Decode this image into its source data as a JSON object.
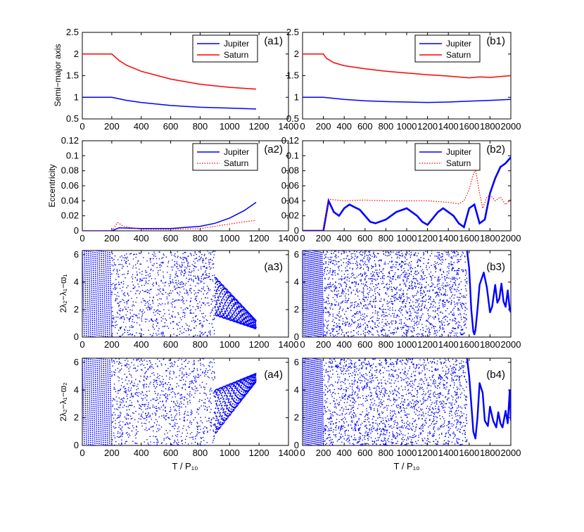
{
  "chart_data": [
    {
      "id": "a1",
      "panel_label": "(a1)",
      "type": "line",
      "ylabel": "Semi−major axis",
      "xlabel": "",
      "xlim": [
        0,
        1400
      ],
      "ylim": [
        0.5,
        2.5
      ],
      "xticks": [
        0,
        200,
        400,
        600,
        800,
        1000,
        1200,
        1400
      ],
      "yticks": [
        0.5,
        1,
        1.5,
        2,
        2.5
      ],
      "legend": {
        "position": "top-right",
        "style": "solid"
      },
      "series": [
        {
          "name": "Jupiter",
          "color": "#0000ff",
          "points": [
            [
              0,
              1.0
            ],
            [
              200,
              1.0
            ],
            [
              300,
              0.93
            ],
            [
              400,
              0.88
            ],
            [
              600,
              0.81
            ],
            [
              800,
              0.77
            ],
            [
              1000,
              0.75
            ],
            [
              1180,
              0.73
            ]
          ]
        },
        {
          "name": "Saturn",
          "color": "#ff0000",
          "points": [
            [
              0,
              2.0
            ],
            [
              200,
              2.0
            ],
            [
              250,
              1.85
            ],
            [
              300,
              1.74
            ],
            [
              400,
              1.6
            ],
            [
              600,
              1.42
            ],
            [
              800,
              1.3
            ],
            [
              1000,
              1.23
            ],
            [
              1180,
              1.19
            ]
          ]
        }
      ]
    },
    {
      "id": "b1",
      "panel_label": "(b1)",
      "type": "line",
      "ylabel": "",
      "xlabel": "",
      "xlim": [
        0,
        2000
      ],
      "ylim": [
        0.5,
        2.5
      ],
      "xticks": [
        0,
        200,
        400,
        600,
        800,
        1000,
        1200,
        1400,
        1600,
        1800,
        2000
      ],
      "yticks": [
        0.5,
        1,
        1.5,
        2,
        2.5
      ],
      "legend": {
        "position": "top-right",
        "style": "solid"
      },
      "series": [
        {
          "name": "Jupiter",
          "color": "#0000ff",
          "points": [
            [
              0,
              1.0
            ],
            [
              200,
              1.0
            ],
            [
              400,
              0.95
            ],
            [
              600,
              0.92
            ],
            [
              800,
              0.9
            ],
            [
              1000,
              0.89
            ],
            [
              1200,
              0.88
            ],
            [
              1400,
              0.89
            ],
            [
              1600,
              0.91
            ],
            [
              1800,
              0.93
            ],
            [
              2000,
              0.95
            ]
          ]
        },
        {
          "name": "Saturn",
          "color": "#ff0000",
          "points": [
            [
              0,
              2.0
            ],
            [
              200,
              2.0
            ],
            [
              230,
              1.9
            ],
            [
              300,
              1.8
            ],
            [
              400,
              1.73
            ],
            [
              600,
              1.66
            ],
            [
              800,
              1.6
            ],
            [
              1000,
              1.56
            ],
            [
              1200,
              1.52
            ],
            [
              1400,
              1.49
            ],
            [
              1600,
              1.45
            ],
            [
              1700,
              1.47
            ],
            [
              1800,
              1.46
            ],
            [
              2000,
              1.5
            ]
          ]
        }
      ]
    },
    {
      "id": "a2",
      "panel_label": "(a2)",
      "type": "line",
      "ylabel": "Eccentricity",
      "xlabel": "",
      "xlim": [
        0,
        1400
      ],
      "ylim": [
        0,
        0.12
      ],
      "xticks": [
        0,
        200,
        400,
        600,
        800,
        1000,
        1200,
        1400
      ],
      "yticks": [
        0,
        0.02,
        0.04,
        0.06,
        0.08,
        0.1,
        0.12
      ],
      "legend": {
        "position": "top-right",
        "style": "jupiter-solid-saturn-dotted"
      },
      "series": [
        {
          "name": "Jupiter",
          "color": "#0000ff",
          "points": [
            [
              0,
              0.0
            ],
            [
              200,
              0.0
            ],
            [
              250,
              0.004
            ],
            [
              400,
              0.003
            ],
            [
              600,
              0.003
            ],
            [
              800,
              0.006
            ],
            [
              900,
              0.01
            ],
            [
              1000,
              0.017
            ],
            [
              1100,
              0.027
            ],
            [
              1180,
              0.038
            ]
          ]
        },
        {
          "name": "Saturn",
          "color": "#ff0000",
          "points": [
            [
              0,
              0.0
            ],
            [
              200,
              0.0
            ],
            [
              240,
              0.011
            ],
            [
              280,
              0.006
            ],
            [
              400,
              0.002
            ],
            [
              600,
              0.002
            ],
            [
              800,
              0.003
            ],
            [
              900,
              0.006
            ],
            [
              1000,
              0.009
            ],
            [
              1100,
              0.012
            ],
            [
              1180,
              0.014
            ]
          ]
        }
      ]
    },
    {
      "id": "b2",
      "panel_label": "(b2)",
      "type": "line",
      "ylabel": "",
      "xlabel": "",
      "xlim": [
        0,
        2000
      ],
      "ylim": [
        0,
        0.12
      ],
      "xticks": [
        0,
        200,
        400,
        600,
        800,
        1000,
        1200,
        1400,
        1600,
        1800,
        2000
      ],
      "yticks": [
        0,
        0.02,
        0.04,
        0.06,
        0.08,
        0.1,
        0.12
      ],
      "legend": {
        "position": "top-right",
        "style": "jupiter-solid-saturn-dotted"
      },
      "series": [
        {
          "name": "Jupiter",
          "color": "#0000ff",
          "points": [
            [
              0,
              0.0
            ],
            [
              200,
              0.0
            ],
            [
              250,
              0.04
            ],
            [
              300,
              0.025
            ],
            [
              350,
              0.02
            ],
            [
              400,
              0.03
            ],
            [
              450,
              0.035
            ],
            [
              550,
              0.028
            ],
            [
              650,
              0.012
            ],
            [
              700,
              0.01
            ],
            [
              800,
              0.015
            ],
            [
              900,
              0.025
            ],
            [
              1000,
              0.03
            ],
            [
              1100,
              0.02
            ],
            [
              1150,
              0.012
            ],
            [
              1200,
              0.008
            ],
            [
              1300,
              0.025
            ],
            [
              1350,
              0.03
            ],
            [
              1450,
              0.02
            ],
            [
              1500,
              0.01
            ],
            [
              1550,
              0.005
            ],
            [
              1600,
              0.03
            ],
            [
              1650,
              0.035
            ],
            [
              1700,
              0.01
            ],
            [
              1750,
              0.015
            ],
            [
              1800,
              0.05
            ],
            [
              1850,
              0.07
            ],
            [
              1900,
              0.085
            ],
            [
              1950,
              0.09
            ],
            [
              2000,
              0.098
            ]
          ]
        },
        {
          "name": "Saturn",
          "color": "#ff0000",
          "points": [
            [
              0,
              0.0
            ],
            [
              200,
              0.0
            ],
            [
              250,
              0.042
            ],
            [
              400,
              0.04
            ],
            [
              600,
              0.041
            ],
            [
              800,
              0.04
            ],
            [
              1000,
              0.04
            ],
            [
              1200,
              0.04
            ],
            [
              1400,
              0.038
            ],
            [
              1500,
              0.036
            ],
            [
              1550,
              0.04
            ],
            [
              1600,
              0.055
            ],
            [
              1640,
              0.075
            ],
            [
              1660,
              0.082
            ],
            [
              1700,
              0.05
            ],
            [
              1730,
              0.03
            ],
            [
              1770,
              0.045
            ],
            [
              1800,
              0.048
            ],
            [
              1850,
              0.04
            ],
            [
              1900,
              0.045
            ],
            [
              1950,
              0.035
            ],
            [
              2000,
              0.042
            ]
          ]
        }
      ]
    },
    {
      "id": "a3",
      "panel_label": "(a3)",
      "type": "scatter",
      "ylabel": "2λ₂−λ₁−ϖ₁",
      "xlabel": "",
      "xlim": [
        0,
        1400
      ],
      "ylim": [
        0,
        6.3
      ],
      "xticks": [
        0,
        200,
        400,
        600,
        800,
        1000,
        1200,
        1400
      ],
      "yticks": [
        0,
        2,
        4,
        6
      ],
      "color": "#0000ff",
      "regions": [
        {
          "kind": "circulation",
          "x": [
            0,
            200
          ],
          "y": [
            0,
            6.28
          ],
          "periods": 14
        },
        {
          "kind": "scatter",
          "x": [
            200,
            900
          ],
          "y": [
            0,
            6.28
          ]
        },
        {
          "kind": "libration",
          "x": [
            900,
            1180
          ],
          "center_from": 3.0,
          "center_to": 0.9,
          "amp_from": 1.4,
          "amp_to": 0.3
        }
      ]
    },
    {
      "id": "b3",
      "panel_label": "(b3)",
      "type": "scatter",
      "ylabel": "",
      "xlabel": "",
      "xlim": [
        0,
        2000
      ],
      "ylim": [
        0,
        6.3
      ],
      "xticks": [
        0,
        200,
        400,
        600,
        800,
        1000,
        1200,
        1400,
        1600,
        1800,
        2000
      ],
      "yticks": [
        0,
        2,
        4,
        6
      ],
      "color": "#0000ff",
      "regions": [
        {
          "kind": "circulation",
          "x": [
            0,
            200
          ],
          "y": [
            0,
            6.28
          ],
          "periods": 14
        },
        {
          "kind": "scatter",
          "x": [
            200,
            1580
          ],
          "y": [
            0,
            6.28
          ]
        },
        {
          "kind": "curve",
          "points": [
            [
              1580,
              6.3
            ],
            [
              1600,
              5.0
            ],
            [
              1620,
              2.0
            ],
            [
              1640,
              0.4
            ],
            [
              1650,
              0.2
            ],
            [
              1660,
              0.5
            ],
            [
              1680,
              2.0
            ],
            [
              1700,
              3.8
            ],
            [
              1740,
              4.7
            ],
            [
              1770,
              3.6
            ],
            [
              1800,
              1.8
            ],
            [
              1820,
              2.2
            ],
            [
              1850,
              3.8
            ],
            [
              1870,
              2.5
            ],
            [
              1890,
              2.8
            ],
            [
              1910,
              3.9
            ],
            [
              1930,
              2.6
            ],
            [
              1950,
              2.2
            ],
            [
              1970,
              3.4
            ],
            [
              1990,
              2.0
            ],
            [
              2000,
              1.8
            ]
          ]
        }
      ]
    },
    {
      "id": "a4",
      "panel_label": "(a4)",
      "type": "scatter",
      "ylabel": "2λ₂−λ₁−ϖ₂",
      "xlabel": "T / P₁₀",
      "xlim": [
        0,
        1400
      ],
      "ylim": [
        0,
        6.3
      ],
      "xticks": [
        0,
        200,
        400,
        600,
        800,
        1000,
        1200,
        1400
      ],
      "yticks": [
        0,
        2,
        4,
        6
      ],
      "color": "#0000ff",
      "regions": [
        {
          "kind": "circulation",
          "x": [
            0,
            200
          ],
          "y": [
            0,
            6.28
          ],
          "periods": 14
        },
        {
          "kind": "scatter",
          "x": [
            200,
            900
          ],
          "y": [
            0,
            6.28
          ]
        },
        {
          "kind": "libration",
          "x": [
            900,
            1180
          ],
          "center_from": 2.4,
          "center_to": 4.9,
          "amp_from": 1.6,
          "amp_to": 0.3
        }
      ]
    },
    {
      "id": "b4",
      "panel_label": "(b4)",
      "type": "scatter",
      "ylabel": "",
      "xlabel": "T / P₁₀",
      "xlim": [
        0,
        2000
      ],
      "ylim": [
        0,
        6.3
      ],
      "xticks": [
        0,
        200,
        400,
        600,
        800,
        1000,
        1200,
        1400,
        1600,
        1800,
        2000
      ],
      "yticks": [
        0,
        2,
        4,
        6
      ],
      "color": "#0000ff",
      "regions": [
        {
          "kind": "circulation",
          "x": [
            0,
            200
          ],
          "y": [
            0,
            6.28
          ],
          "periods": 14
        },
        {
          "kind": "scatter",
          "x": [
            200,
            1580
          ],
          "y": [
            0,
            6.28
          ]
        },
        {
          "kind": "curve",
          "points": [
            [
              1580,
              6.3
            ],
            [
              1600,
              5.0
            ],
            [
              1620,
              3.0
            ],
            [
              1640,
              1.0
            ],
            [
              1660,
              0.5
            ],
            [
              1680,
              2.0
            ],
            [
              1700,
              4.5
            ],
            [
              1730,
              3.8
            ],
            [
              1750,
              1.8
            ],
            [
              1780,
              1.4
            ],
            [
              1800,
              2.8
            ],
            [
              1830,
              1.8
            ],
            [
              1860,
              1.3
            ],
            [
              1880,
              2.4
            ],
            [
              1900,
              1.6
            ],
            [
              1920,
              1.3
            ],
            [
              1950,
              2.5
            ],
            [
              1970,
              1.6
            ],
            [
              1990,
              4.0
            ],
            [
              2000,
              1.8
            ]
          ]
        }
      ]
    }
  ]
}
